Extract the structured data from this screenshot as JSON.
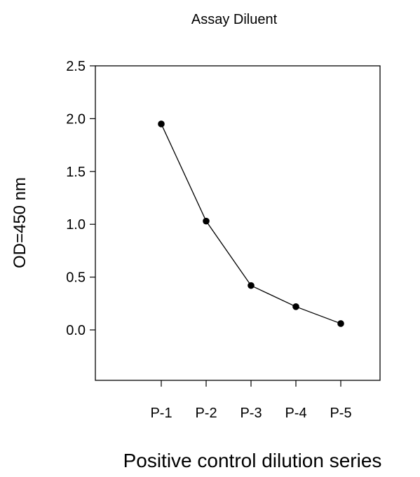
{
  "chart_data": {
    "type": "line",
    "title": "Assay Diluent",
    "xlabel": "Positive control dilution series",
    "ylabel": "OD=450 nm",
    "categories": [
      "P-1",
      "P-2",
      "P-3",
      "P-4",
      "P-5"
    ],
    "series": [
      {
        "values": [
          1.95,
          1.03,
          0.42,
          0.22,
          0.06
        ]
      }
    ],
    "ylim": [
      -0.45,
      2.5
    ],
    "yticks": [
      0.0,
      0.5,
      1.0,
      1.5,
      2.0,
      2.5
    ],
    "ytick_labels": [
      "0.0",
      "0.5",
      "1.0",
      "1.5",
      "2.0",
      "2.5"
    ],
    "grid": false,
    "legend": "none",
    "colors": {
      "line": "#000000",
      "marker": "#000000",
      "axis": "#000000"
    }
  }
}
